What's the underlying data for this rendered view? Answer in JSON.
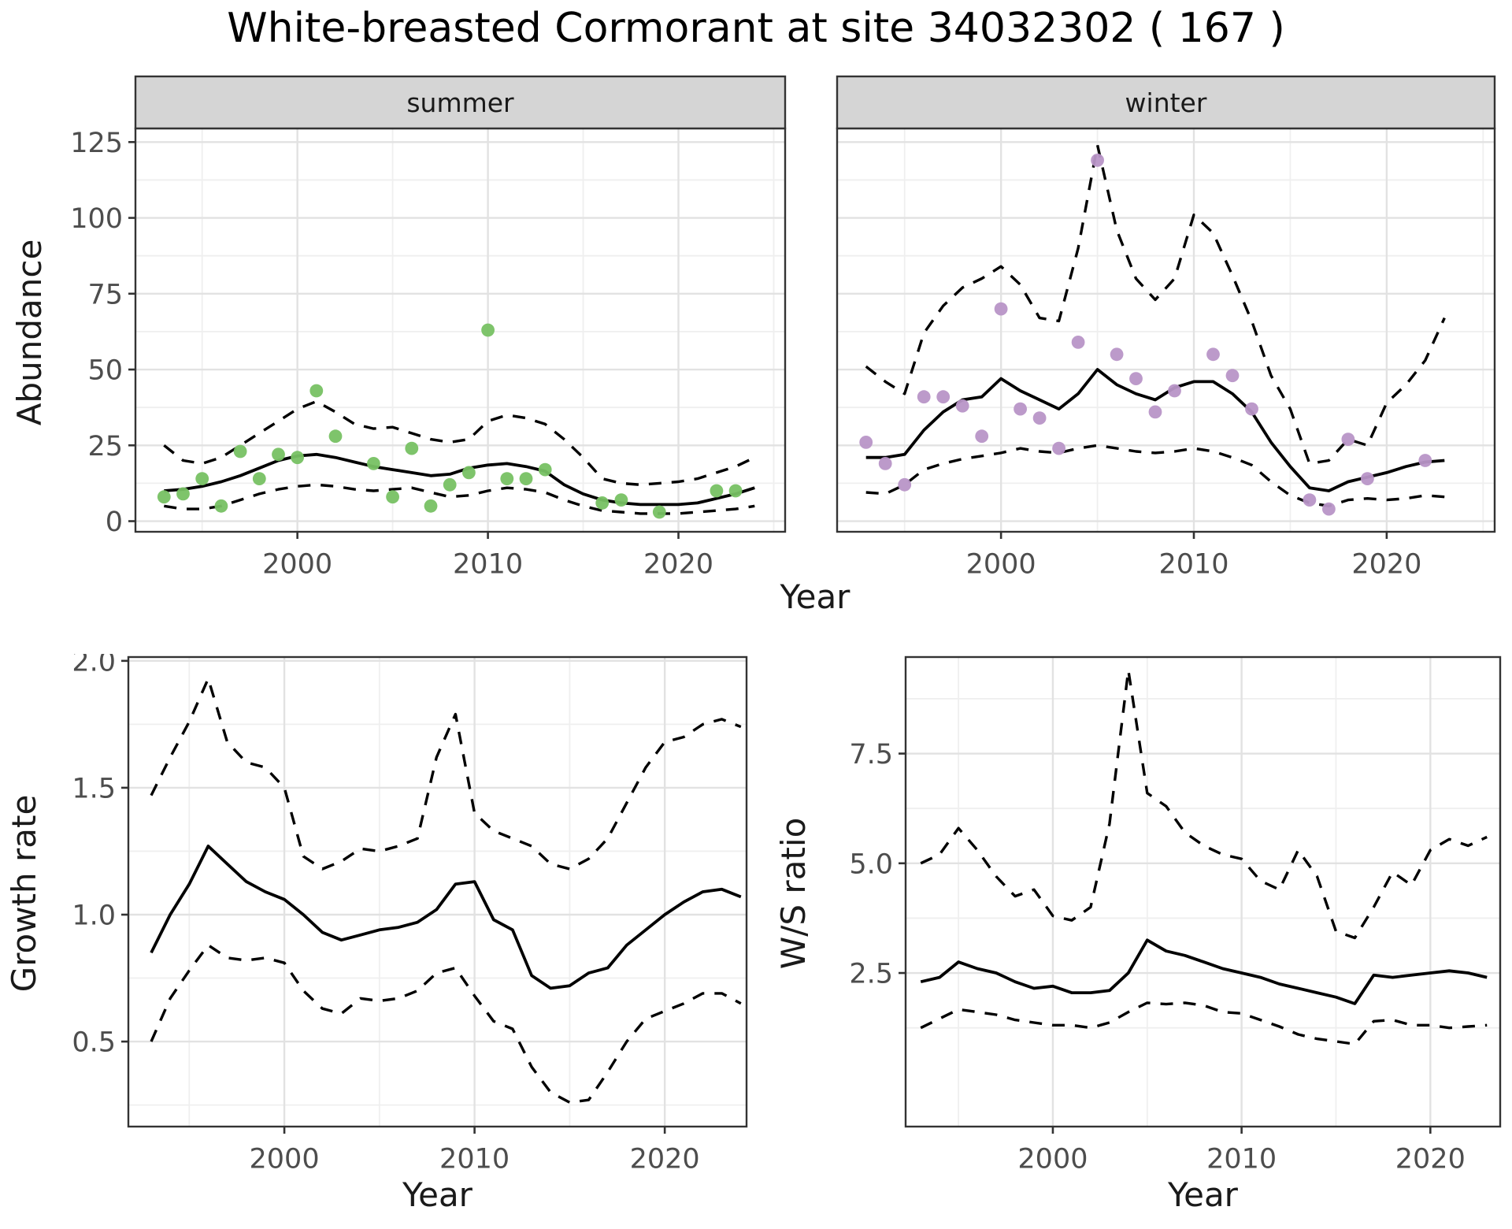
{
  "title": "White-breasted Cormorant at site 34032302 ( 167 )",
  "axis_titles": {
    "abundance": "Abundance",
    "year": "Year",
    "growth_rate": "Growth rate",
    "ws_ratio": "W/S ratio"
  },
  "facets": {
    "summer": "summer",
    "winter": "winter"
  },
  "colors": {
    "summer_points": "#77c163",
    "winter_points": "#b895c7",
    "line": "#000000",
    "strip_bg": "#d5d5d5",
    "panel_border": "#333333",
    "grid_major": "#e2e2e2",
    "grid_minor": "#efefef",
    "tick_text": "#4d4d4d",
    "background": "#ffffff"
  },
  "chart_data": [
    {
      "id": "abundance-summer",
      "type": "scatter",
      "facet_label": "summer",
      "xlabel": "Year",
      "ylabel": "Abundance",
      "point_color": "#77c163",
      "x_range": [
        1991.5,
        2025.6
      ],
      "y_range": [
        -3.5,
        129.5
      ],
      "x_ticks": [
        2000,
        2010,
        2020
      ],
      "x_tick_labels": [
        "2000",
        "2010",
        "2020"
      ],
      "x_minor": [
        1995,
        2005,
        2015,
        2025
      ],
      "y_ticks": [
        0,
        25,
        50,
        75,
        100,
        125
      ],
      "y_tick_labels": [
        "0",
        "25",
        "50",
        "75",
        "100",
        "125"
      ],
      "y_minor": [
        12.5,
        37.5,
        62.5,
        87.5,
        112.5
      ],
      "show_y_labels": true,
      "points": {
        "years": [
          1993,
          1994,
          1995,
          1996,
          1997,
          1998,
          1999,
          2000,
          2001,
          2002,
          2004,
          2005,
          2006,
          2007,
          2008,
          2009,
          2010,
          2011,
          2012,
          2013,
          2016,
          2017,
          2019,
          2022,
          2023
        ],
        "values": [
          8,
          9,
          14,
          5,
          23,
          14,
          22,
          21,
          43,
          28,
          19,
          8,
          24,
          5,
          12,
          16,
          63,
          14,
          14,
          17,
          6,
          7,
          3,
          10,
          10
        ]
      },
      "series": [
        {
          "name": "fit",
          "style": "solid",
          "x_start": 1993,
          "y": [
            10,
            10.5,
            11.5,
            13,
            15,
            17.5,
            20,
            21.5,
            22,
            21,
            19.5,
            18,
            17,
            16,
            15,
            15.5,
            17.5,
            18.5,
            19,
            18,
            16.5,
            12,
            9,
            7,
            6,
            5.5,
            5.5,
            5.5,
            6,
            7.5,
            9,
            11
          ]
        },
        {
          "name": "upper_ci",
          "style": "dashed",
          "x_start": 1993,
          "y": [
            25,
            20,
            19,
            21,
            25,
            29,
            33,
            37,
            39.5,
            36,
            32,
            30.5,
            31,
            29,
            27,
            26,
            27,
            33,
            35,
            34,
            32,
            27,
            21,
            14,
            12.5,
            12,
            12.5,
            13,
            14,
            16,
            18,
            21
          ]
        },
        {
          "name": "lower_ci",
          "style": "dashed",
          "x_start": 1993,
          "y": [
            5,
            4,
            4,
            5,
            7,
            9,
            10.5,
            11.5,
            12,
            11.5,
            10.5,
            10,
            10.5,
            11,
            9.5,
            8,
            8.5,
            10,
            11,
            10.5,
            9.5,
            7,
            5,
            3.5,
            3,
            2.5,
            2.5,
            2.5,
            3,
            3.5,
            4,
            5
          ]
        }
      ]
    },
    {
      "id": "abundance-winter",
      "type": "scatter",
      "facet_label": "winter",
      "xlabel": "Year",
      "ylabel": "Abundance",
      "point_color": "#b895c7",
      "x_range": [
        1991.5,
        2025.6
      ],
      "y_range": [
        -3.5,
        129.5
      ],
      "x_ticks": [
        2000,
        2010,
        2020
      ],
      "x_tick_labels": [
        "2000",
        "2010",
        "2020"
      ],
      "x_minor": [
        1995,
        2005,
        2015,
        2025
      ],
      "y_ticks": [
        0,
        25,
        50,
        75,
        100,
        125
      ],
      "y_tick_labels": [
        "0",
        "25",
        "50",
        "75",
        "100",
        "125"
      ],
      "y_minor": [
        12.5,
        37.5,
        62.5,
        87.5,
        112.5
      ],
      "show_y_labels": false,
      "points": {
        "years": [
          1993,
          1994,
          1995,
          1996,
          1997,
          1998,
          1999,
          2000,
          2001,
          2002,
          2003,
          2004,
          2005,
          2006,
          2007,
          2008,
          2009,
          2011,
          2012,
          2013,
          2016,
          2017,
          2018,
          2019,
          2022
        ],
        "values": [
          26,
          19,
          12,
          41,
          41,
          38,
          28,
          70,
          37,
          34,
          24,
          59,
          119,
          55,
          47,
          36,
          43,
          55,
          48,
          37,
          7,
          4,
          27,
          14,
          20
        ]
      },
      "series": [
        {
          "name": "fit",
          "style": "solid",
          "x_start": 1993,
          "y": [
            21,
            21,
            22,
            30,
            36,
            40,
            41,
            47,
            43,
            40,
            37,
            42,
            50,
            45,
            42,
            40,
            44,
            46,
            46,
            42,
            36,
            26,
            18,
            11,
            10,
            13,
            14.5,
            16,
            18,
            19.5,
            20
          ]
        },
        {
          "name": "upper_ci",
          "style": "dashed",
          "x_start": 1993,
          "y": [
            51,
            46,
            42,
            62,
            71,
            77,
            80,
            84,
            78,
            67,
            66,
            90,
            124,
            96,
            80,
            73,
            80,
            101,
            95,
            81,
            66,
            48,
            37,
            19,
            20,
            27,
            25,
            39,
            45,
            53,
            67
          ]
        },
        {
          "name": "lower_ci",
          "style": "dashed",
          "x_start": 1993,
          "y": [
            9.5,
            9,
            12,
            17,
            19,
            20.5,
            21.5,
            22.5,
            24,
            23,
            22.5,
            24,
            25,
            24,
            23,
            22.5,
            23,
            24,
            23,
            21,
            18.5,
            13,
            8.5,
            6,
            5,
            7,
            7.5,
            7,
            7.5,
            8.5,
            8
          ]
        }
      ]
    },
    {
      "id": "growth-rate",
      "type": "line",
      "facet_label": null,
      "xlabel": "Year",
      "ylabel": "Growth rate",
      "x_range": [
        1991.8,
        2024.3
      ],
      "y_range": [
        0.165,
        2.015
      ],
      "x_ticks": [
        2000,
        2010,
        2020
      ],
      "x_tick_labels": [
        "2000",
        "2010",
        "2020"
      ],
      "x_minor": [
        1995,
        2005,
        2015
      ],
      "y_ticks": [
        0.5,
        1.0,
        1.5,
        2.0
      ],
      "y_tick_labels": [
        "0.5",
        "1.0",
        "1.5",
        "2.0"
      ],
      "y_minor": [
        0.25,
        0.75,
        1.25,
        1.75
      ],
      "show_y_labels": true,
      "points": null,
      "series": [
        {
          "name": "fit",
          "style": "solid",
          "x_start": 1993,
          "y": [
            0.85,
            1.0,
            1.12,
            1.27,
            1.2,
            1.13,
            1.09,
            1.06,
            1.0,
            0.93,
            0.9,
            0.92,
            0.94,
            0.95,
            0.97,
            1.02,
            1.12,
            1.13,
            0.98,
            0.94,
            0.76,
            0.71,
            0.72,
            0.77,
            0.79,
            0.88,
            0.94,
            1.0,
            1.05,
            1.09,
            1.1,
            1.07
          ]
        },
        {
          "name": "upper_ci",
          "style": "dashed",
          "x_start": 1993,
          "y": [
            1.47,
            1.62,
            1.76,
            1.93,
            1.68,
            1.6,
            1.58,
            1.5,
            1.23,
            1.18,
            1.21,
            1.26,
            1.25,
            1.27,
            1.3,
            1.62,
            1.79,
            1.4,
            1.33,
            1.3,
            1.27,
            1.2,
            1.18,
            1.22,
            1.3,
            1.44,
            1.58,
            1.68,
            1.7,
            1.75,
            1.77,
            1.74
          ]
        },
        {
          "name": "lower_ci",
          "style": "dashed",
          "x_start": 1993,
          "y": [
            0.5,
            0.67,
            0.78,
            0.88,
            0.83,
            0.82,
            0.83,
            0.81,
            0.7,
            0.63,
            0.61,
            0.67,
            0.66,
            0.67,
            0.7,
            0.77,
            0.79,
            0.68,
            0.58,
            0.55,
            0.4,
            0.3,
            0.26,
            0.27,
            0.38,
            0.5,
            0.59,
            0.62,
            0.65,
            0.69,
            0.69,
            0.65
          ]
        }
      ]
    },
    {
      "id": "ws-ratio",
      "type": "line",
      "facet_label": null,
      "xlabel": "Year",
      "ylabel": "W/S ratio",
      "x_range": [
        1992.2,
        2023.7
      ],
      "y_range": [
        -1.0,
        9.7
      ],
      "x_ticks": [
        2000,
        2010,
        2020
      ],
      "x_tick_labels": [
        "2000",
        "2010",
        "2020"
      ],
      "x_minor": [
        1995,
        2005,
        2015
      ],
      "y_ticks": [
        2.5,
        5.0,
        7.5
      ],
      "y_tick_labels": [
        "2.5",
        "5.0",
        "7.5"
      ],
      "y_minor": [
        1.25,
        3.75,
        6.25,
        8.75
      ],
      "show_y_labels": true,
      "points": null,
      "series": [
        {
          "name": "fit",
          "style": "solid",
          "x_start": 1993,
          "y": [
            2.3,
            2.4,
            2.75,
            2.6,
            2.5,
            2.3,
            2.15,
            2.2,
            2.05,
            2.05,
            2.1,
            2.5,
            3.25,
            3.0,
            2.9,
            2.75,
            2.6,
            2.5,
            2.4,
            2.25,
            2.15,
            2.05,
            1.95,
            1.8,
            2.45,
            2.4,
            2.45,
            2.5,
            2.55,
            2.5,
            2.4
          ]
        },
        {
          "name": "upper_ci",
          "style": "dashed",
          "x_start": 1993,
          "y": [
            5.0,
            5.2,
            5.8,
            5.3,
            4.7,
            4.25,
            4.4,
            3.8,
            3.7,
            4.0,
            5.9,
            9.4,
            6.6,
            6.3,
            5.7,
            5.4,
            5.2,
            5.1,
            4.6,
            4.4,
            5.3,
            4.7,
            3.45,
            3.3,
            4.0,
            4.8,
            4.5,
            5.3,
            5.55,
            5.4,
            5.6
          ]
        },
        {
          "name": "lower_ci",
          "style": "dashed",
          "x_start": 1993,
          "y": [
            1.25,
            1.46,
            1.67,
            1.61,
            1.55,
            1.43,
            1.37,
            1.31,
            1.31,
            1.25,
            1.37,
            1.61,
            1.82,
            1.79,
            1.82,
            1.76,
            1.61,
            1.58,
            1.43,
            1.28,
            1.1,
            1.0,
            0.94,
            0.88,
            1.4,
            1.43,
            1.31,
            1.31,
            1.25,
            1.28,
            1.31
          ]
        }
      ]
    }
  ]
}
